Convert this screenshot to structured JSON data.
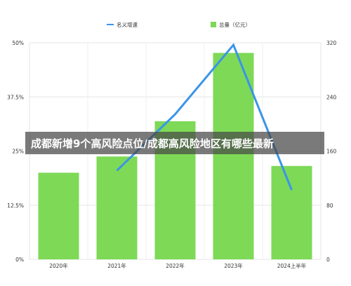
{
  "chart_data": {
    "type": "bar",
    "categories": [
      "2020年",
      "2021年",
      "2022年",
      "2023年",
      "2024上半年"
    ],
    "series": [
      {
        "name": "总量（亿元）",
        "type": "bar",
        "axis": "right",
        "color": "#7ed957",
        "values": [
          128,
          152,
          204,
          305,
          138
        ]
      },
      {
        "name": "名义增速",
        "type": "line",
        "axis": "left",
        "color": "#3b94e8",
        "values": [
          null,
          0.205,
          0.335,
          0.495,
          0.16
        ]
      }
    ],
    "y_left": {
      "ticks": [
        "0%",
        "12.5%",
        "25%",
        "37.5%",
        "50%"
      ],
      "range": [
        0,
        0.5
      ]
    },
    "y_right": {
      "ticks": [
        "0",
        "80",
        "160",
        "240",
        "320"
      ],
      "range": [
        0,
        320
      ]
    },
    "grid": true,
    "legend": "top-center"
  },
  "banner": {
    "text": "成都新增9个高风险点位/成都高风险地区有哪些最新"
  }
}
